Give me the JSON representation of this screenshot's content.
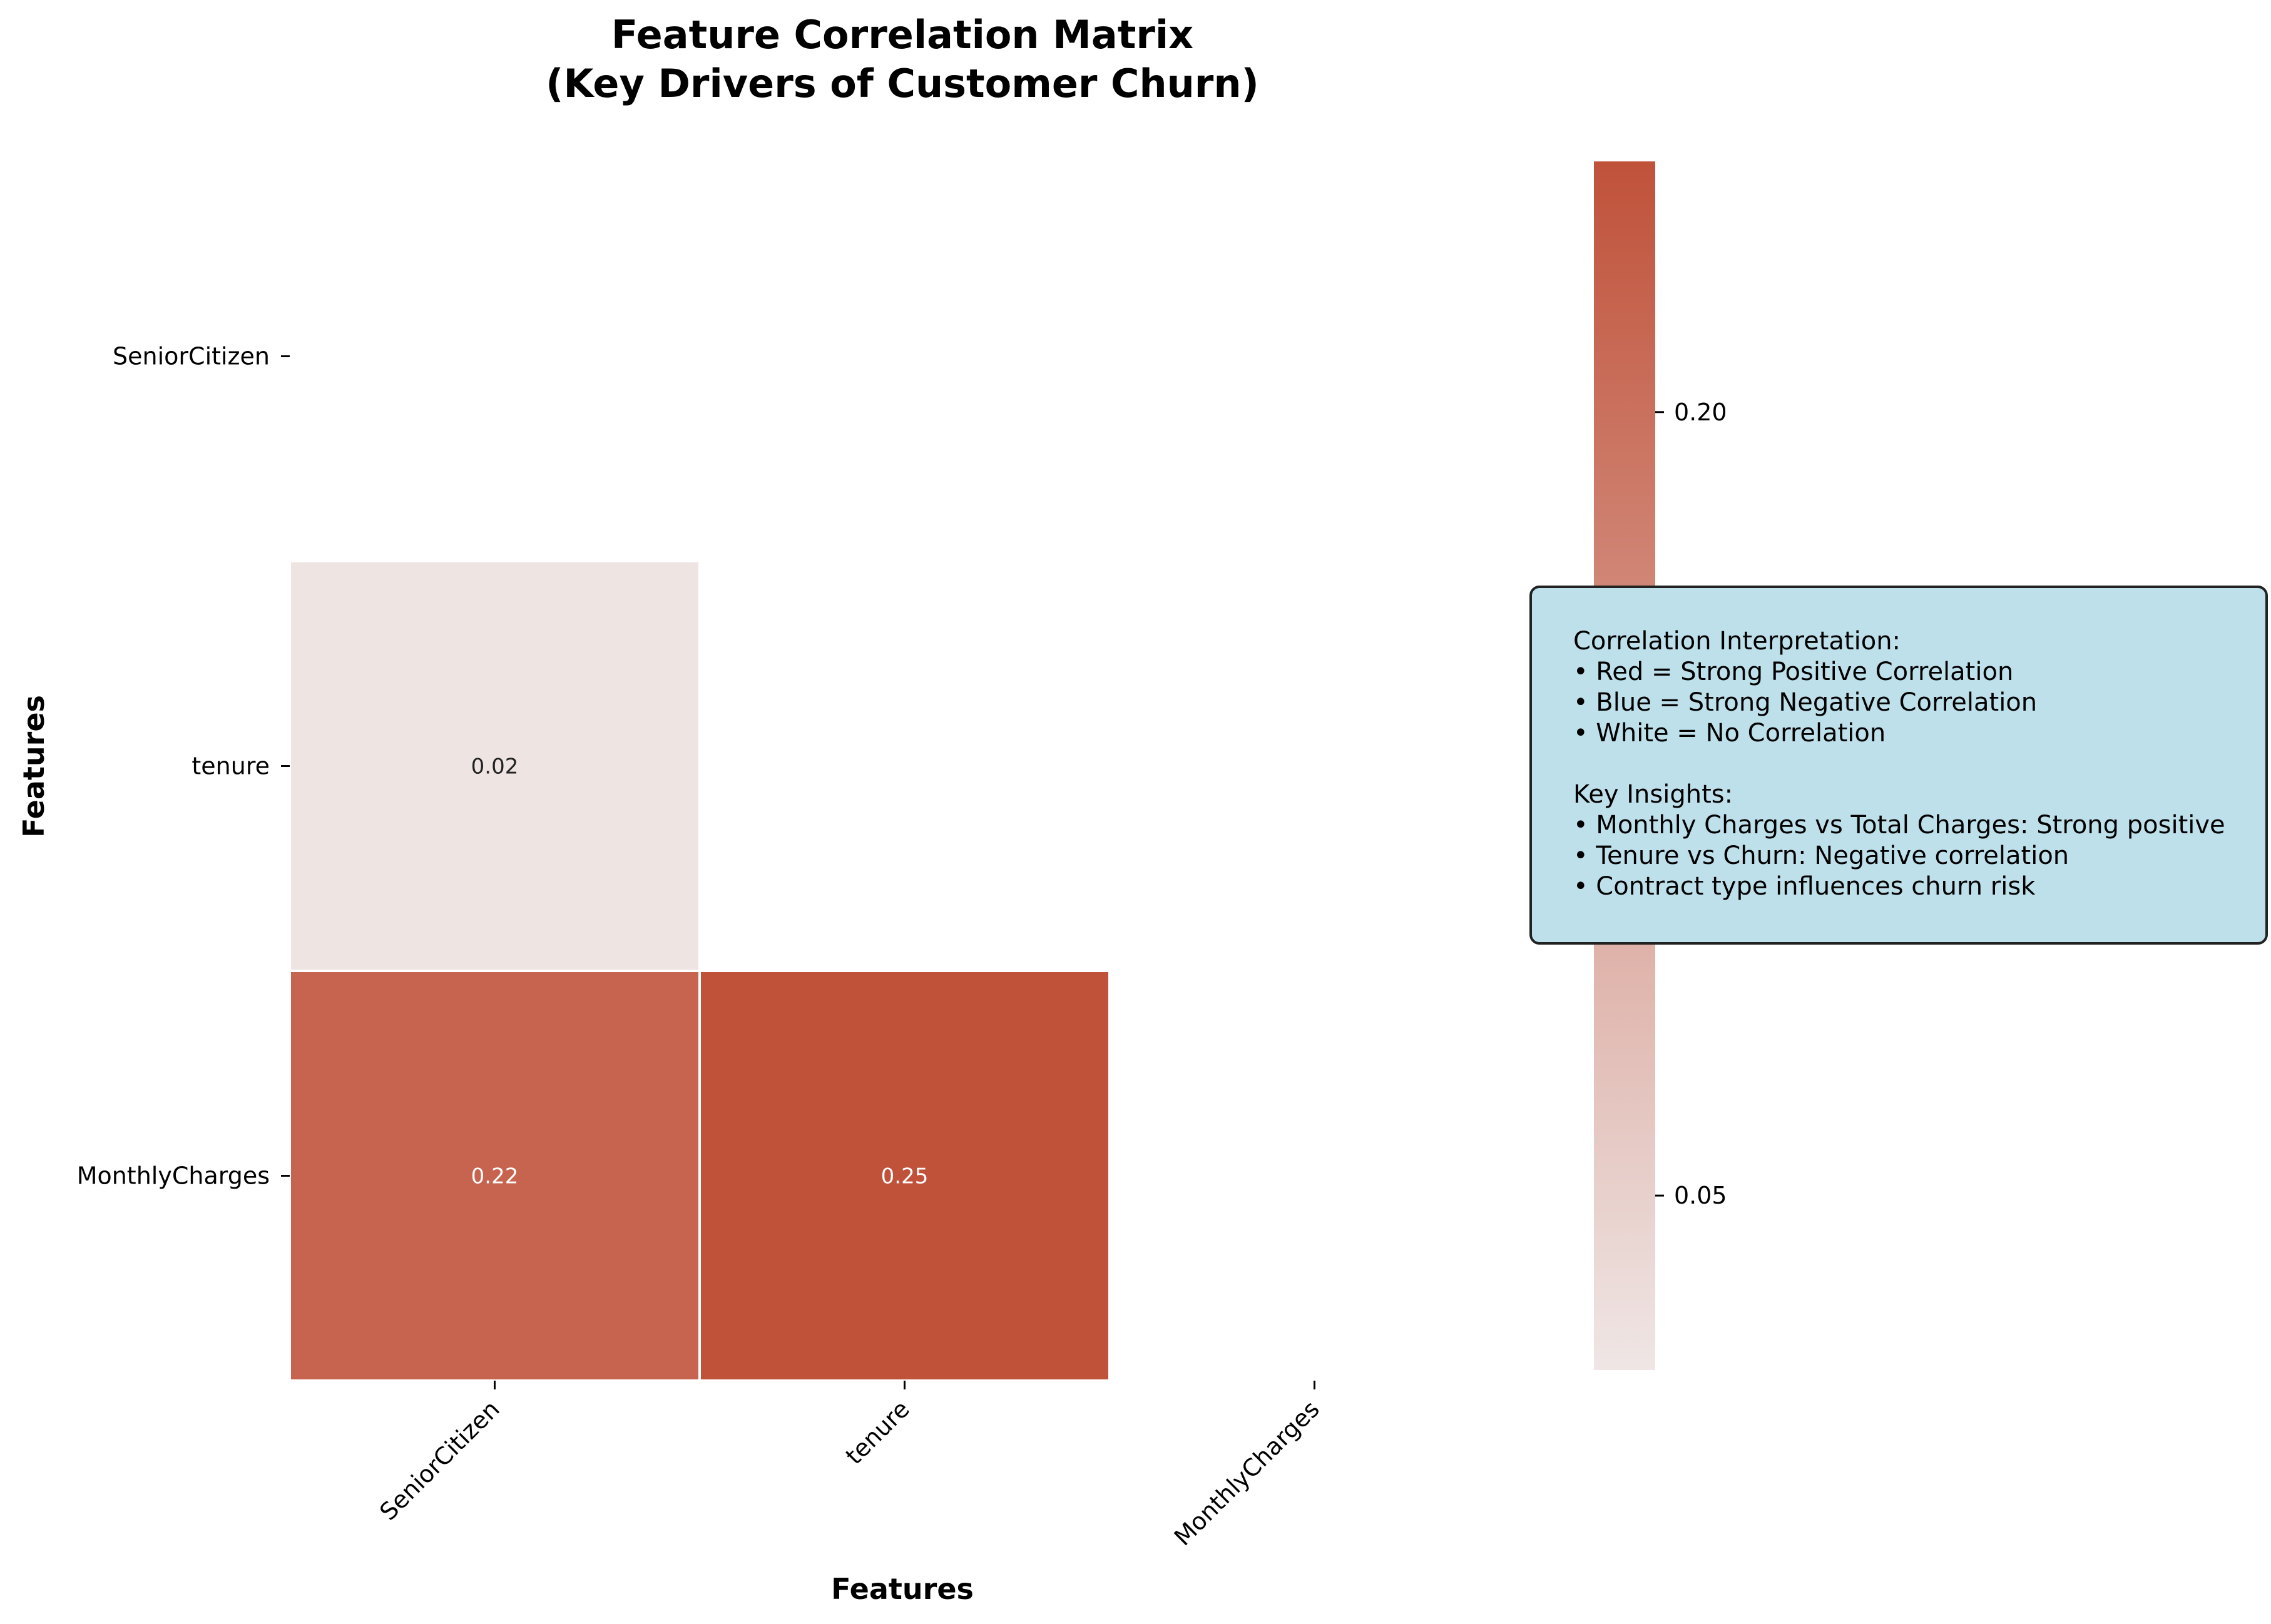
{
  "chart_data": {
    "type": "heatmap",
    "title": [
      "Feature Correlation Matrix",
      "(Key Drivers of Customer Churn)"
    ],
    "xlabel": "Features",
    "ylabel": "Features",
    "x_categories": [
      "SeniorCitizen",
      "tenure",
      "MonthlyCharges"
    ],
    "y_categories": [
      "SeniorCitizen",
      "tenure",
      "MonthlyCharges"
    ],
    "cells": [
      {
        "row": 1,
        "col": 0,
        "value": 0.02,
        "label": "0.02"
      },
      {
        "row": 2,
        "col": 0,
        "value": 0.22,
        "label": "0.22"
      },
      {
        "row": 2,
        "col": 1,
        "value": 0.25,
        "label": "0.25"
      }
    ],
    "mask": "upper-triangle-and-diagonal",
    "colorbar": {
      "range": [
        0.0166,
        0.248
      ],
      "ticks": [
        0.05,
        0.1,
        0.15,
        0.2
      ],
      "tick_labels": [
        "0.05",
        "0.10",
        "0.15",
        "0.20"
      ],
      "color_low": "#efe6e5",
      "color_high": "#c0523a"
    },
    "annotation_box": {
      "background": "#bde0eb",
      "lines": [
        "Correlation Interpretation:",
        "• Red = Strong Positive Correlation",
        "• Blue = Strong Negative Correlation",
        "• White = No Correlation",
        "",
        "Key Insights:",
        "• Monthly Charges vs Total Charges: Strong positive",
        "• Tenure vs Churn: Negative correlation",
        "• Contract type influences churn risk"
      ]
    }
  }
}
